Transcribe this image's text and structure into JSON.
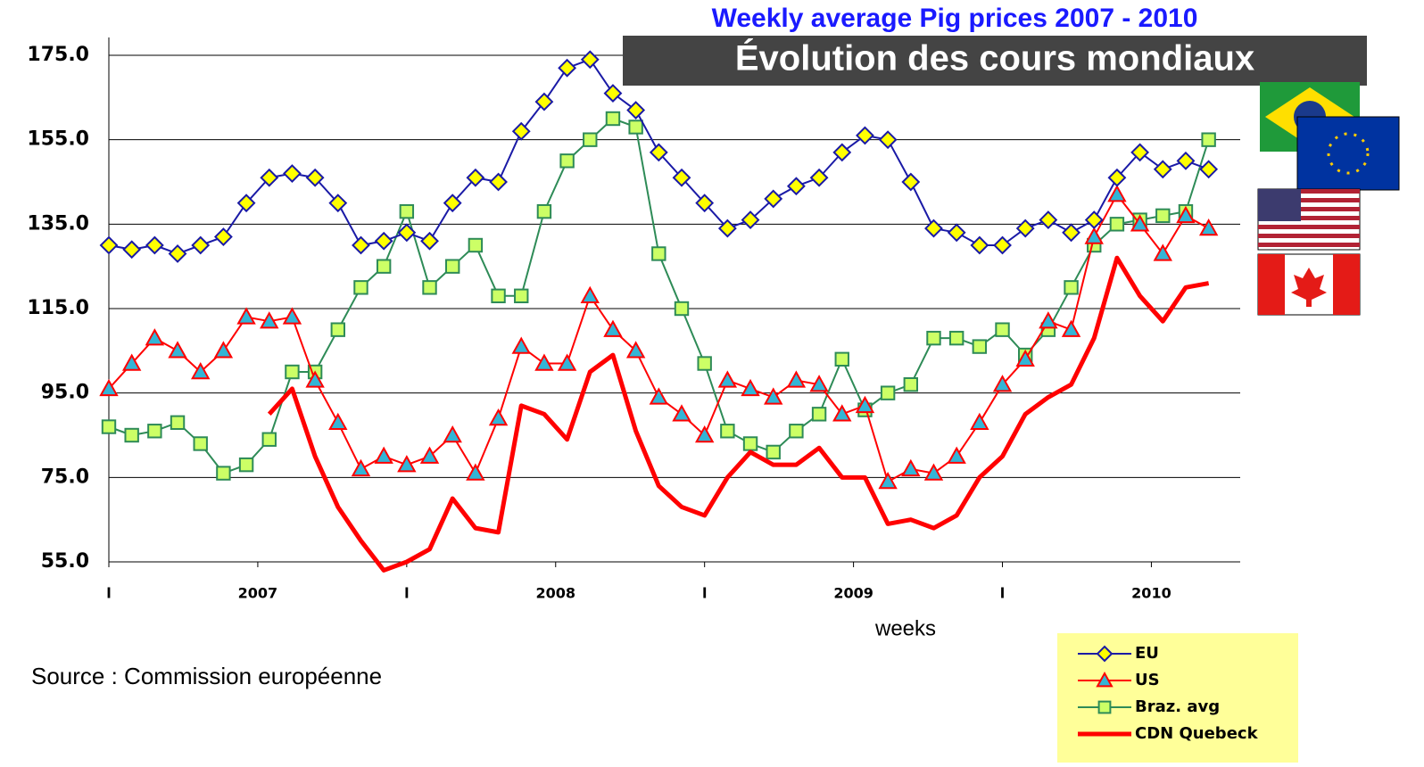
{
  "chart_data": {
    "type": "line",
    "title": "Weekly average Pig prices 2007 - 2010",
    "banner": "Évolution des cours mondiaux",
    "x_label": "weeks",
    "source": "Source :  Commission européenne",
    "x": [
      0,
      4,
      8,
      12,
      16,
      20,
      24,
      28,
      32,
      36,
      40,
      44,
      48,
      52,
      56,
      60,
      64,
      68,
      72,
      76,
      80,
      84,
      88,
      92,
      96,
      100,
      104,
      108,
      112,
      116,
      120,
      124,
      128,
      132,
      136,
      140,
      144,
      148,
      152,
      156,
      160,
      164,
      168,
      172,
      176,
      180,
      184,
      188,
      192
    ],
    "xlim": [
      0,
      198
    ],
    "xticks": [
      {
        "value": 0,
        "label": "l"
      },
      {
        "value": 26,
        "label": "2007"
      },
      {
        "value": 52,
        "label": "l"
      },
      {
        "value": 78,
        "label": "2008"
      },
      {
        "value": 104,
        "label": "l"
      },
      {
        "value": 130,
        "label": "2009"
      },
      {
        "value": 156,
        "label": "l"
      },
      {
        "value": 182,
        "label": "2010"
      }
    ],
    "ylim": [
      55,
      175
    ],
    "yticks": [
      {
        "value": 55,
        "label": "55.0"
      },
      {
        "value": 75,
        "label": "75.0"
      },
      {
        "value": 95,
        "label": "95.0"
      },
      {
        "value": 115,
        "label": "115.0"
      },
      {
        "value": 135,
        "label": "135.0"
      },
      {
        "value": 155,
        "label": "155.0"
      },
      {
        "value": 175,
        "label": "175.0"
      }
    ],
    "grid": true,
    "legend": "bottom-right",
    "series": [
      {
        "name": "EU",
        "color": "#1a1aa6",
        "marker": "diamond",
        "fill": "#ffff00",
        "values": [
          130,
          129,
          130,
          128,
          130,
          132,
          140,
          146,
          147,
          146,
          140,
          130,
          131,
          133,
          131,
          140,
          146,
          145,
          157,
          164,
          172,
          174,
          166,
          162,
          152,
          146,
          140,
          134,
          136,
          141,
          144,
          146,
          152,
          156,
          155,
          145,
          134,
          133,
          130,
          130,
          134,
          136,
          133,
          136,
          146,
          152,
          148,
          150,
          148
        ]
      },
      {
        "name": "US",
        "color": "#ff0000",
        "marker": "triangle",
        "fill": "#33b5d6",
        "values": [
          96,
          102,
          108,
          105,
          100,
          105,
          113,
          112,
          113,
          98,
          88,
          77,
          80,
          78,
          80,
          85,
          76,
          89,
          106,
          102,
          102,
          118,
          110,
          105,
          94,
          90,
          85,
          98,
          96,
          94,
          98,
          97,
          90,
          92,
          74,
          77,
          76,
          80,
          88,
          97,
          103,
          112,
          110,
          132,
          142,
          135,
          128,
          137,
          134
        ]
      },
      {
        "name": "Braz. avg",
        "color": "#2e8b57",
        "marker": "square",
        "fill": "#ccff66",
        "values": [
          87,
          85,
          86,
          88,
          83,
          76,
          78,
          84,
          100,
          100,
          110,
          120,
          125,
          138,
          120,
          125,
          130,
          118,
          118,
          138,
          150,
          155,
          160,
          158,
          128,
          115,
          102,
          86,
          83,
          81,
          86,
          90,
          103,
          91,
          95,
          97,
          108,
          108,
          106,
          110,
          104,
          110,
          120,
          130,
          135,
          136,
          137,
          138,
          155
        ]
      },
      {
        "name": "CDN Quebeck",
        "color": "#ff0000",
        "marker": "none",
        "values": [
          null,
          null,
          null,
          null,
          null,
          null,
          null,
          90,
          96,
          80,
          68,
          60,
          53,
          55,
          58,
          70,
          63,
          62,
          92,
          90,
          84,
          100,
          104,
          86,
          73,
          68,
          66,
          75,
          81,
          78,
          78,
          82,
          75,
          75,
          64,
          65,
          63,
          66,
          75,
          80,
          90,
          94,
          97,
          108,
          127,
          118,
          112,
          120,
          121
        ]
      }
    ]
  }
}
